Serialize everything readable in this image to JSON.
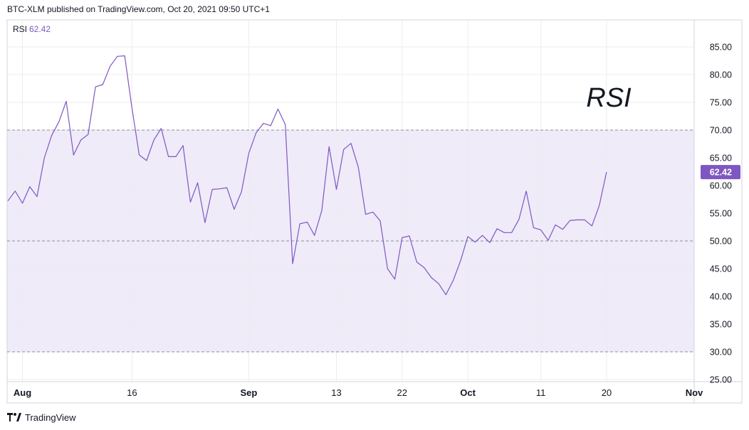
{
  "header": {
    "text": "BTC-XLM published on TradingView.com, Oct 20, 2021 09:50 UTC+1"
  },
  "footer": {
    "brand": "TradingView",
    "icon": "tradingview-logo-icon"
  },
  "colors": {
    "line": "#7e57c2",
    "band_fill": "#efebf9",
    "grid": "#ebedf1",
    "dashed": "#8a8f9e",
    "label_bg": "#7e57c2",
    "label_text": "#ffffff",
    "border": "#d1d4dc"
  },
  "chart_data": {
    "type": "line",
    "title": "RSI",
    "legend": {
      "name": "RSI",
      "value": "62.42"
    },
    "last_value_label": "62.42",
    "ylim": [
      25,
      90
    ],
    "ytick_labels": [
      "85.00",
      "80.00",
      "75.00",
      "70.00",
      "65.00",
      "60.00",
      "55.00",
      "50.00",
      "45.00",
      "40.00",
      "35.00",
      "30.00",
      "25.00"
    ],
    "ytick_values": [
      85,
      80,
      75,
      70,
      65,
      60,
      55,
      50,
      45,
      40,
      35,
      30,
      25
    ],
    "overbought": 70,
    "middle": 50,
    "oversold": 30,
    "x_ticks": [
      {
        "label": "Aug",
        "date": "2021-08-01",
        "bold": true
      },
      {
        "label": "16",
        "date": "2021-08-16",
        "bold": false
      },
      {
        "label": "Sep",
        "date": "2021-09-01",
        "bold": true
      },
      {
        "label": "13",
        "date": "2021-09-13",
        "bold": false
      },
      {
        "label": "22",
        "date": "2021-09-22",
        "bold": false
      },
      {
        "label": "Oct",
        "date": "2021-10-01",
        "bold": true
      },
      {
        "label": "11",
        "date": "2021-10-11",
        "bold": false
      },
      {
        "label": "20",
        "date": "2021-10-20",
        "bold": false
      },
      {
        "label": "Nov",
        "date": "2021-11-01",
        "bold": true
      }
    ],
    "x_range": [
      "2021-07-30",
      "2021-11-01"
    ],
    "series": [
      {
        "values": [
          [
            "2021-07-30",
            57.2
          ],
          [
            "2021-07-31",
            59.0
          ],
          [
            "2021-08-01",
            56.8
          ],
          [
            "2021-08-02",
            59.8
          ],
          [
            "2021-08-03",
            58.0
          ],
          [
            "2021-08-04",
            65.0
          ],
          [
            "2021-08-05",
            69.0
          ],
          [
            "2021-08-06",
            71.5
          ],
          [
            "2021-08-07",
            75.2
          ],
          [
            "2021-08-08",
            65.5
          ],
          [
            "2021-08-09",
            68.2
          ],
          [
            "2021-08-10",
            69.2
          ],
          [
            "2021-08-11",
            77.8
          ],
          [
            "2021-08-12",
            78.2
          ],
          [
            "2021-08-13",
            81.5
          ],
          [
            "2021-08-14",
            83.3
          ],
          [
            "2021-08-15",
            83.4
          ],
          [
            "2021-08-16",
            74.0
          ],
          [
            "2021-08-17",
            65.5
          ],
          [
            "2021-08-18",
            64.5
          ],
          [
            "2021-08-19",
            68.2
          ],
          [
            "2021-08-20",
            70.3
          ],
          [
            "2021-08-21",
            65.2
          ],
          [
            "2021-08-22",
            65.2
          ],
          [
            "2021-08-23",
            67.2
          ],
          [
            "2021-08-24",
            57.0
          ],
          [
            "2021-08-25",
            60.5
          ],
          [
            "2021-08-26",
            53.3
          ],
          [
            "2021-08-27",
            59.3
          ],
          [
            "2021-08-28",
            59.4
          ],
          [
            "2021-08-29",
            59.6
          ],
          [
            "2021-08-30",
            55.7
          ],
          [
            "2021-08-31",
            58.9
          ],
          [
            "2021-09-01",
            65.8
          ],
          [
            "2021-09-02",
            69.5
          ],
          [
            "2021-09-03",
            71.2
          ],
          [
            "2021-09-04",
            70.8
          ],
          [
            "2021-09-05",
            73.8
          ],
          [
            "2021-09-06",
            71.0
          ],
          [
            "2021-09-07",
            45.9
          ],
          [
            "2021-09-08",
            53.1
          ],
          [
            "2021-09-09",
            53.4
          ],
          [
            "2021-09-10",
            51.0
          ],
          [
            "2021-09-11",
            55.5
          ],
          [
            "2021-09-12",
            67.0
          ],
          [
            "2021-09-13",
            59.3
          ],
          [
            "2021-09-14",
            66.5
          ],
          [
            "2021-09-15",
            67.6
          ],
          [
            "2021-09-16",
            63.3
          ],
          [
            "2021-09-17",
            54.8
          ],
          [
            "2021-09-18",
            55.2
          ],
          [
            "2021-09-19",
            53.6
          ],
          [
            "2021-09-20",
            45.0
          ],
          [
            "2021-09-21",
            43.1
          ],
          [
            "2021-09-22",
            50.6
          ],
          [
            "2021-09-23",
            50.9
          ],
          [
            "2021-09-24",
            46.2
          ],
          [
            "2021-09-25",
            45.2
          ],
          [
            "2021-09-26",
            43.4
          ],
          [
            "2021-09-27",
            42.3
          ],
          [
            "2021-09-28",
            40.3
          ],
          [
            "2021-09-29",
            42.9
          ],
          [
            "2021-09-30",
            46.4
          ],
          [
            "2021-10-01",
            50.8
          ],
          [
            "2021-10-02",
            49.8
          ],
          [
            "2021-10-03",
            51.0
          ],
          [
            "2021-10-04",
            49.7
          ],
          [
            "2021-10-05",
            52.2
          ],
          [
            "2021-10-06",
            51.5
          ],
          [
            "2021-10-07",
            51.5
          ],
          [
            "2021-10-08",
            53.9
          ],
          [
            "2021-10-09",
            59.0
          ],
          [
            "2021-10-10",
            52.4
          ],
          [
            "2021-10-11",
            52.0
          ],
          [
            "2021-10-12",
            50.1
          ],
          [
            "2021-10-13",
            52.9
          ],
          [
            "2021-10-14",
            52.1
          ],
          [
            "2021-10-15",
            53.7
          ],
          [
            "2021-10-16",
            53.8
          ],
          [
            "2021-10-17",
            53.8
          ],
          [
            "2021-10-18",
            52.7
          ],
          [
            "2021-10-19",
            56.4
          ],
          [
            "2021-10-20",
            62.42
          ]
        ]
      }
    ],
    "grid": true
  }
}
